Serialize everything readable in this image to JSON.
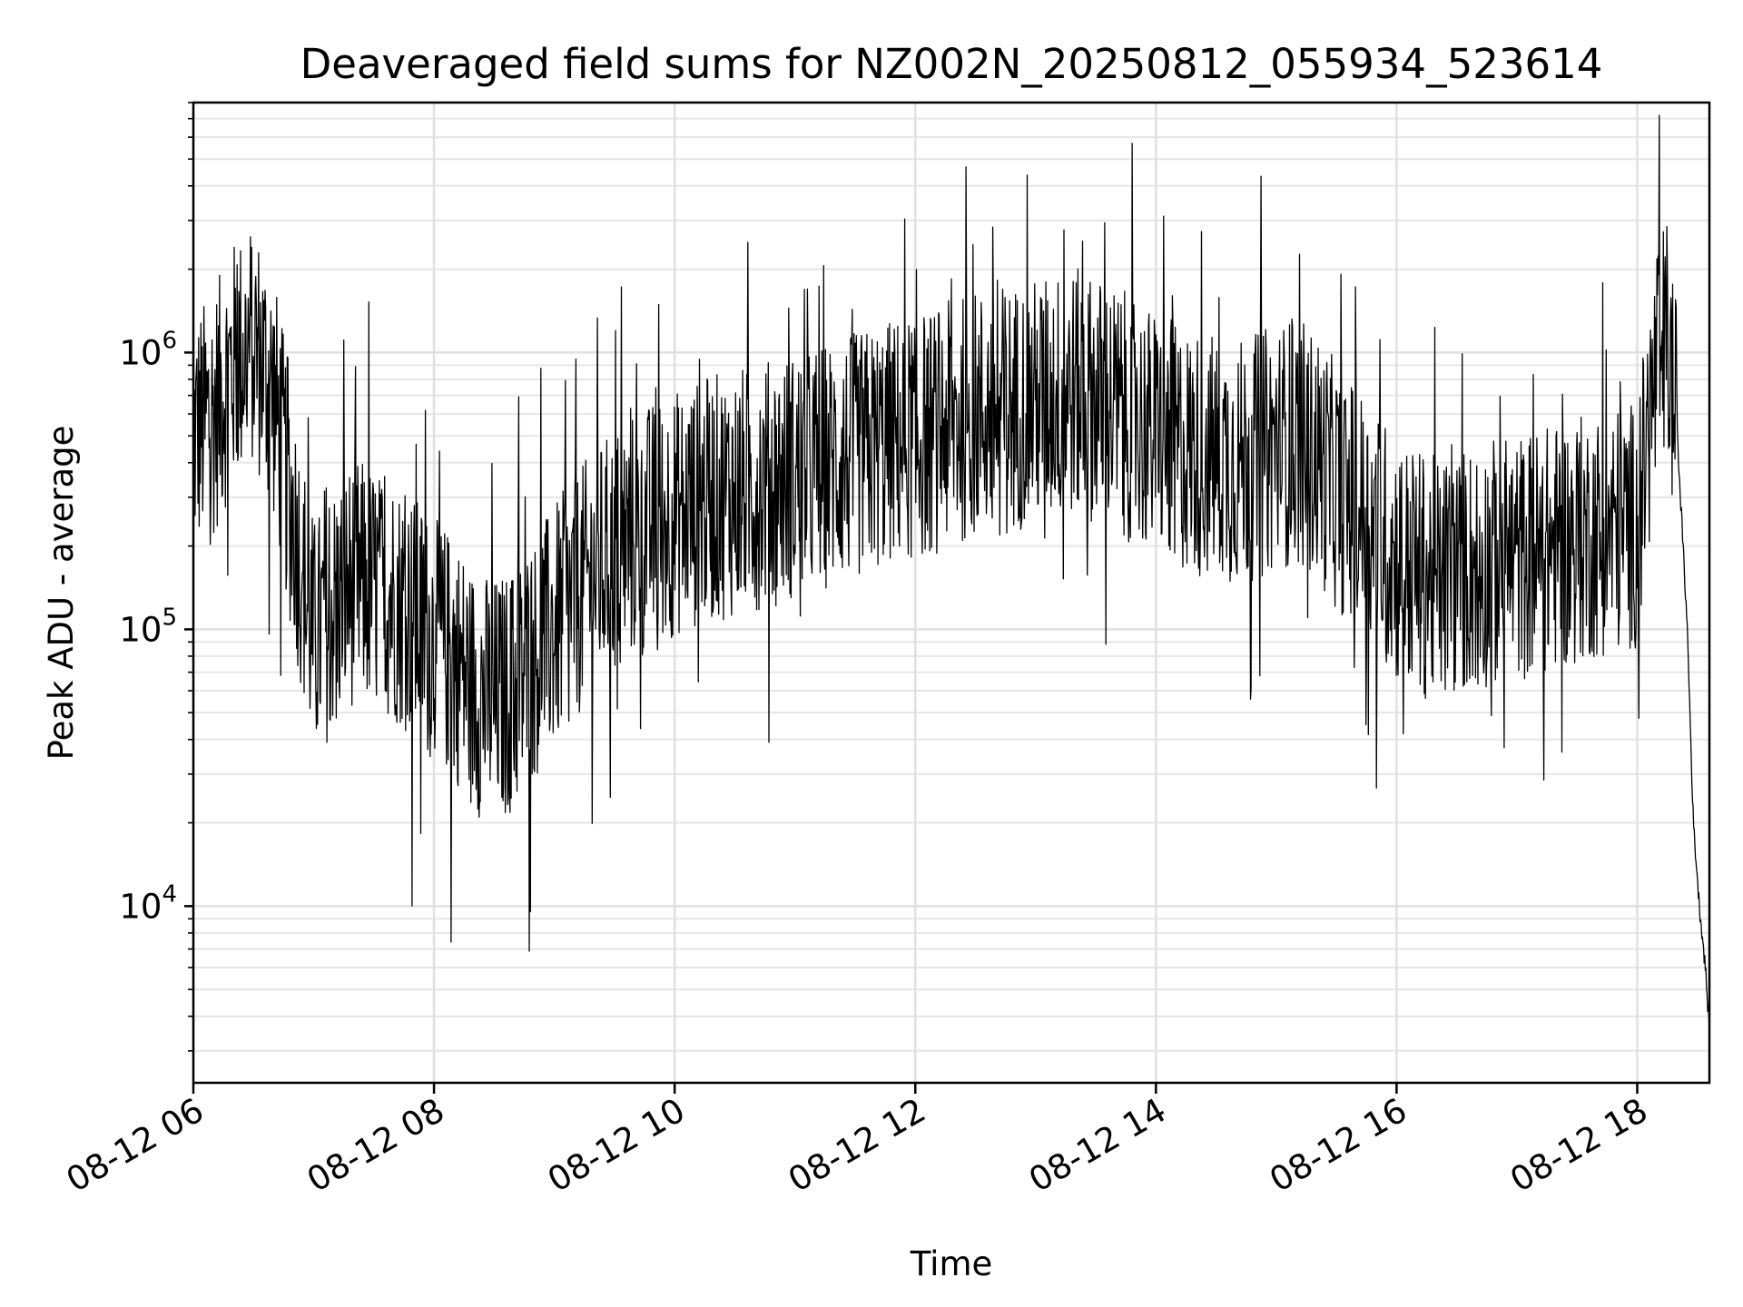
{
  "chart_data": {
    "type": "line",
    "title": "Deaveraged field sums for NZ002N_20250812_055934_523614",
    "xlabel": "Time",
    "ylabel": "Peak ADU - average",
    "yscale": "log",
    "xlim": [
      "08-12 06:00",
      "08-12 18:36"
    ],
    "ylim": [
      2300,
      8000000
    ],
    "grid": true,
    "x_ticks": [
      "08-12 06",
      "08-12 08",
      "08-12 10",
      "08-12 12",
      "08-12 14",
      "08-12 16",
      "08-12 18"
    ],
    "y_ticks": [
      {
        "base": "10",
        "exp": "4"
      },
      {
        "base": "10",
        "exp": "5"
      },
      {
        "base": "10",
        "exp": "6"
      }
    ],
    "series": [
      {
        "color": "#000000",
        "x": [
          "08-12 06:00",
          "08-12 06:10",
          "08-12 06:20",
          "08-12 06:30",
          "08-12 06:40",
          "08-12 06:50",
          "08-12 07:00",
          "08-12 07:10",
          "08-12 07:20",
          "08-12 07:30",
          "08-12 07:40",
          "08-12 07:50",
          "08-12 08:00",
          "08-12 08:10",
          "08-12 08:20",
          "08-12 08:30",
          "08-12 08:40",
          "08-12 08:50",
          "08-12 09:00",
          "08-12 09:10",
          "08-12 09:20",
          "08-12 09:30",
          "08-12 09:40",
          "08-12 09:50",
          "08-12 10:00",
          "08-12 10:10",
          "08-12 10:20",
          "08-12 10:30",
          "08-12 10:40",
          "08-12 10:50",
          "08-12 11:00",
          "08-12 11:10",
          "08-12 11:20",
          "08-12 11:30",
          "08-12 11:40",
          "08-12 11:50",
          "08-12 12:00",
          "08-12 12:10",
          "08-12 12:20",
          "08-12 12:30",
          "08-12 12:40",
          "08-12 12:50",
          "08-12 13:00",
          "08-12 13:10",
          "08-12 13:20",
          "08-12 13:30",
          "08-12 13:40",
          "08-12 13:50",
          "08-12 14:00",
          "08-12 14:10",
          "08-12 14:20",
          "08-12 14:30",
          "08-12 14:40",
          "08-12 14:50",
          "08-12 15:00",
          "08-12 15:10",
          "08-12 15:20",
          "08-12 15:30",
          "08-12 15:40",
          "08-12 15:50",
          "08-12 16:00",
          "08-12 16:10",
          "08-12 16:20",
          "08-12 16:30",
          "08-12 16:40",
          "08-12 16:50",
          "08-12 17:00",
          "08-12 17:10",
          "08-12 17:20",
          "08-12 17:30",
          "08-12 17:40",
          "08-12 17:50",
          "08-12 18:00",
          "08-12 18:10",
          "08-12 18:15",
          "08-12 18:20",
          "08-12 18:25",
          "08-12 18:28",
          "08-12 18:31",
          "08-12 18:34",
          "08-12 18:36"
        ],
        "y": [
          500000,
          600000,
          900000,
          1100000,
          700000,
          250000,
          90000,
          120000,
          150000,
          140000,
          130000,
          110000,
          90000,
          80000,
          60000,
          55000,
          60000,
          80000,
          100000,
          130000,
          160000,
          190000,
          220000,
          240000,
          260000,
          280000,
          300000,
          310000,
          330000,
          340000,
          360000,
          380000,
          400000,
          420000,
          450000,
          480000,
          500000,
          520000,
          560000,
          600000,
          620000,
          640000,
          660000,
          700000,
          720000,
          680000,
          620000,
          560000,
          500000,
          460000,
          430000,
          420000,
          400000,
          420000,
          460000,
          480000,
          420000,
          330000,
          280000,
          220000,
          180000,
          160000,
          150000,
          160000,
          170000,
          175000,
          180000,
          190000,
          200000,
          210000,
          220000,
          230000,
          240000,
          900000,
          1100000,
          500000,
          100000,
          20000,
          10000,
          6000,
          3500
        ]
      }
    ]
  }
}
